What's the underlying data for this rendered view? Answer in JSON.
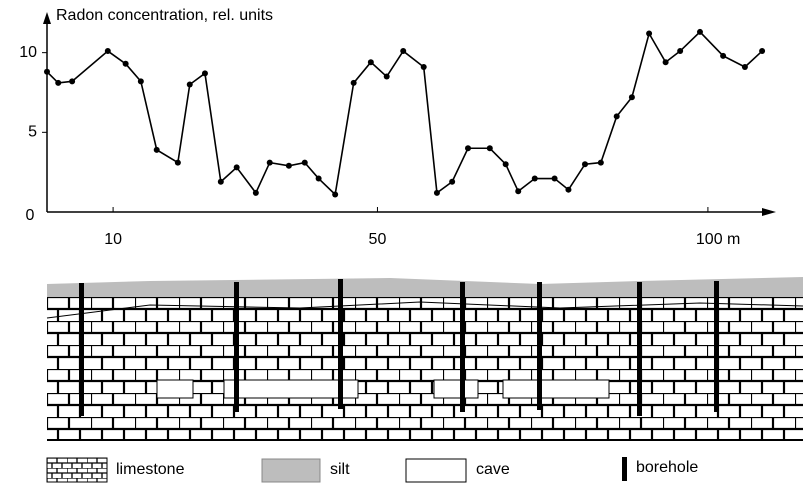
{
  "chart_data": {
    "type": "line",
    "title": "Radon concentration, rel. units",
    "x": [
      0,
      1.7,
      3.8,
      9.2,
      11.9,
      14.2,
      16.6,
      19.8,
      21.6,
      23.9,
      26.3,
      28.7,
      31.6,
      33.7,
      36.6,
      39.0,
      41.1,
      43.6,
      46.4,
      49.0,
      51.4,
      53.9,
      57.0,
      59.0,
      61.3,
      63.7,
      67.0,
      69.4,
      71.3,
      73.8,
      76.8,
      78.9,
      81.4,
      83.8,
      86.2,
      88.5,
      91.1,
      93.6,
      95.8,
      98.8,
      102.3,
      105.6,
      108.2
    ],
    "values": [
      8.8,
      8.1,
      8.2,
      10.1,
      9.3,
      8.2,
      3.9,
      3.1,
      8.0,
      8.7,
      1.9,
      2.8,
      1.2,
      3.1,
      2.9,
      3.1,
      2.1,
      1.1,
      8.1,
      9.4,
      8.5,
      10.1,
      9.1,
      1.2,
      1.9,
      4.0,
      4.0,
      3.0,
      1.3,
      2.1,
      2.1,
      1.4,
      3.0,
      3.1,
      6.0,
      7.2,
      11.2,
      9.4,
      10.1,
      11.3,
      9.8,
      9.1,
      10.1
    ],
    "color": "#000000",
    "xlim": [
      0,
      110
    ],
    "xticks": [
      10,
      50,
      {
        "value": 100,
        "label": "100 m"
      }
    ],
    "ylim": [
      0,
      12.3
    ],
    "yticks": [
      0,
      5,
      10
    ]
  },
  "section": {
    "legend": [
      "limestone",
      "silt",
      "cave",
      "borehole"
    ]
  }
}
